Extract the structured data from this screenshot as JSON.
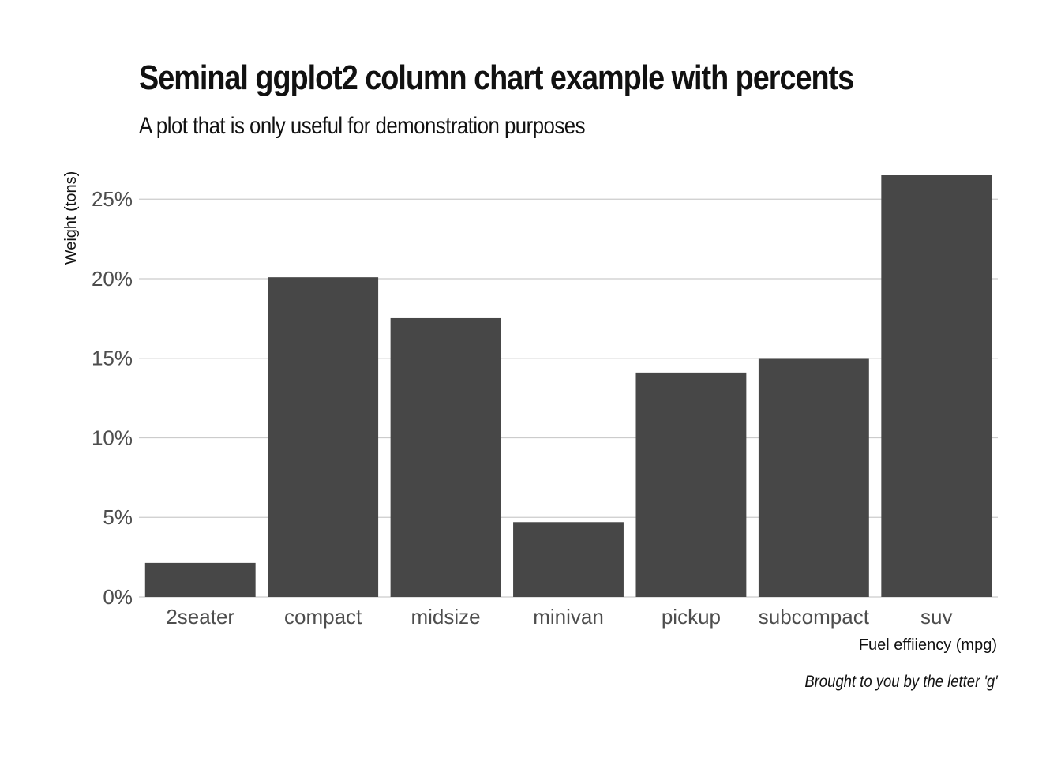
{
  "chart_data": {
    "type": "bar",
    "title": "Seminal ggplot2 column chart example with percents",
    "subtitle": "A plot that is only useful for demonstration purposes",
    "caption": "Brought to you by the letter 'g'",
    "xlabel": "Fuel effiiency (mpg)",
    "ylabel": "Weight (tons)",
    "categories": [
      "2seater",
      "compact",
      "midsize",
      "minivan",
      "pickup",
      "subcompact",
      "suv"
    ],
    "values": [
      0.0214,
      0.2009,
      0.1752,
      0.047,
      0.141,
      0.1496,
      0.265
    ],
    "ylim": [
      0,
      0.265
    ],
    "yticks": [
      0,
      0.05,
      0.1,
      0.15,
      0.2,
      0.25
    ],
    "ytick_labels": [
      "0%",
      "5%",
      "10%",
      "15%",
      "20%",
      "25%"
    ],
    "grid": "horizontal",
    "bar_color": "#474747",
    "grid_color": "#cccccc"
  }
}
